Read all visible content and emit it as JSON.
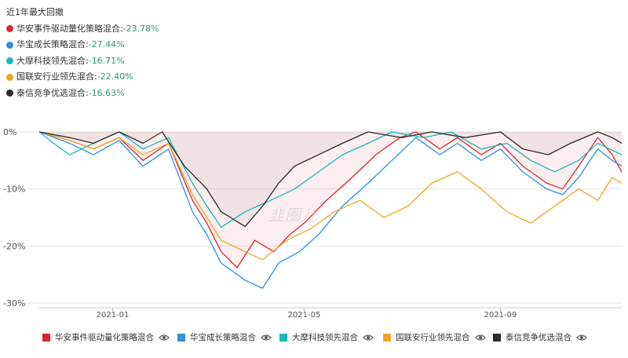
{
  "summary": {
    "title": "近1年最大回撤",
    "items": [
      {
        "name": "华安事件驱动量化策略混合",
        "value": "-23.78%",
        "color": "#e0222f"
      },
      {
        "name": "华宝成长策略混合",
        "value": "-27.44%",
        "color": "#2f8fe0"
      },
      {
        "name": "大摩科技领先混合",
        "value": "-16.71%",
        "color": "#19b8b8"
      },
      {
        "name": "国联安行业领先混合",
        "value": "-22.40%",
        "color": "#f0a623"
      },
      {
        "name": "泰信竞争优选混合",
        "value": "-16.63%",
        "color": "#2a2a2a"
      }
    ]
  },
  "watermark": "韭圈儿",
  "chart_data": {
    "type": "line",
    "title": "近1年最大回撤",
    "xlabel": "",
    "ylabel": "",
    "x_range": [
      "2020-11-16",
      "2021-11-16"
    ],
    "x_ticks": [
      {
        "date": "2021-01-01",
        "label": "2021-01"
      },
      {
        "date": "2021-05-01",
        "label": "2021-05"
      },
      {
        "date": "2021-09-01",
        "label": "2021-09"
      }
    ],
    "y_ticks": [
      {
        "value": 0,
        "label": "0%"
      },
      {
        "value": -10,
        "label": "-10%"
      },
      {
        "value": -20,
        "label": "-20%"
      },
      {
        "value": -30,
        "label": "-30%"
      }
    ],
    "ylim": [
      -30,
      0
    ],
    "grid": "horizontal",
    "legend_position": "bottom",
    "series": [
      {
        "name": "华安事件驱动量化策略混合",
        "color": "#e0222f",
        "max_drawdown": -23.78,
        "points": [
          [
            "2020-11-16",
            0
          ],
          [
            "2020-12-05",
            -1.5
          ],
          [
            "2020-12-20",
            -3
          ],
          [
            "2021-01-05",
            -1
          ],
          [
            "2021-01-20",
            -5
          ],
          [
            "2021-02-05",
            -2
          ],
          [
            "2021-02-20",
            -12
          ],
          [
            "2021-03-01",
            -16
          ],
          [
            "2021-03-10",
            -21
          ],
          [
            "2021-03-20",
            -23.8
          ],
          [
            "2021-03-31",
            -19
          ],
          [
            "2021-04-12",
            -21
          ],
          [
            "2021-04-22",
            -18
          ],
          [
            "2021-05-01",
            -16
          ],
          [
            "2021-05-15",
            -12
          ],
          [
            "2021-05-31",
            -8
          ],
          [
            "2021-06-15",
            -4
          ],
          [
            "2021-06-30",
            -1
          ],
          [
            "2021-07-10",
            0
          ],
          [
            "2021-07-25",
            -3
          ],
          [
            "2021-08-05",
            -1
          ],
          [
            "2021-08-20",
            -4
          ],
          [
            "2021-09-01",
            -2
          ],
          [
            "2021-09-15",
            -6
          ],
          [
            "2021-09-30",
            -9
          ],
          [
            "2021-10-10",
            -10
          ],
          [
            "2021-10-20",
            -6
          ],
          [
            "2021-11-01",
            -1
          ],
          [
            "2021-11-10",
            -4
          ],
          [
            "2021-11-16",
            -7
          ]
        ]
      },
      {
        "name": "华宝成长策略混合",
        "color": "#2f8fe0",
        "max_drawdown": -27.44,
        "points": [
          [
            "2020-11-16",
            0
          ],
          [
            "2020-12-05",
            -2
          ],
          [
            "2020-12-20",
            -4
          ],
          [
            "2021-01-05",
            -1.5
          ],
          [
            "2021-01-20",
            -6
          ],
          [
            "2021-02-05",
            -3
          ],
          [
            "2021-02-20",
            -14
          ],
          [
            "2021-03-01",
            -18
          ],
          [
            "2021-03-10",
            -23
          ],
          [
            "2021-03-25",
            -26
          ],
          [
            "2021-04-05",
            -27.4
          ],
          [
            "2021-04-15",
            -23
          ],
          [
            "2021-04-28",
            -21
          ],
          [
            "2021-05-10",
            -18
          ],
          [
            "2021-05-25",
            -13
          ],
          [
            "2021-06-10",
            -9
          ],
          [
            "2021-06-25",
            -5
          ],
          [
            "2021-07-10",
            -1
          ],
          [
            "2021-07-25",
            -4
          ],
          [
            "2021-08-05",
            -2
          ],
          [
            "2021-08-20",
            -5
          ],
          [
            "2021-09-01",
            -3
          ],
          [
            "2021-09-15",
            -7
          ],
          [
            "2021-09-30",
            -10
          ],
          [
            "2021-10-10",
            -11
          ],
          [
            "2021-10-20",
            -8
          ],
          [
            "2021-11-01",
            -3
          ],
          [
            "2021-11-10",
            -5
          ],
          [
            "2021-11-16",
            -6
          ]
        ]
      },
      {
        "name": "大摩科技领先混合",
        "color": "#19b8b8",
        "max_drawdown": -16.71,
        "points": [
          [
            "2020-11-16",
            0
          ],
          [
            "2020-11-25",
            -2
          ],
          [
            "2020-12-05",
            -4
          ],
          [
            "2020-12-20",
            -2
          ],
          [
            "2021-01-05",
            0
          ],
          [
            "2021-01-20",
            -3
          ],
          [
            "2021-02-05",
            -1
          ],
          [
            "2021-02-20",
            -9
          ],
          [
            "2021-03-01",
            -13
          ],
          [
            "2021-03-10",
            -16.7
          ],
          [
            "2021-03-25",
            -14
          ],
          [
            "2021-04-10",
            -12
          ],
          [
            "2021-04-25",
            -10
          ],
          [
            "2021-05-10",
            -7
          ],
          [
            "2021-05-25",
            -4
          ],
          [
            "2021-06-10",
            -2
          ],
          [
            "2021-06-25",
            0
          ],
          [
            "2021-07-15",
            -1
          ],
          [
            "2021-08-01",
            0
          ],
          [
            "2021-08-20",
            -3
          ],
          [
            "2021-09-05",
            -2
          ],
          [
            "2021-09-20",
            -5
          ],
          [
            "2021-10-05",
            -7
          ],
          [
            "2021-10-20",
            -5
          ],
          [
            "2021-11-01",
            -2
          ],
          [
            "2021-11-16",
            -4
          ]
        ]
      },
      {
        "name": "国联安行业领先混合",
        "color": "#f0a623",
        "max_drawdown": -22.4,
        "points": [
          [
            "2020-11-16",
            0
          ],
          [
            "2020-12-05",
            -1.5
          ],
          [
            "2020-12-20",
            -3
          ],
          [
            "2021-01-05",
            -1
          ],
          [
            "2021-01-20",
            -4
          ],
          [
            "2021-02-05",
            -2
          ],
          [
            "2021-02-20",
            -11
          ],
          [
            "2021-03-01",
            -15
          ],
          [
            "2021-03-10",
            -19
          ],
          [
            "2021-03-25",
            -21
          ],
          [
            "2021-04-05",
            -22.4
          ],
          [
            "2021-04-20",
            -19
          ],
          [
            "2021-05-05",
            -17
          ],
          [
            "2021-05-20",
            -14
          ],
          [
            "2021-06-05",
            -12
          ],
          [
            "2021-06-20",
            -15
          ],
          [
            "2021-07-05",
            -13
          ],
          [
            "2021-07-20",
            -9
          ],
          [
            "2021-08-05",
            -7
          ],
          [
            "2021-08-20",
            -10
          ],
          [
            "2021-09-05",
            -14
          ],
          [
            "2021-09-20",
            -16
          ],
          [
            "2021-10-05",
            -13
          ],
          [
            "2021-10-20",
            -10
          ],
          [
            "2021-11-01",
            -12
          ],
          [
            "2021-11-10",
            -8
          ],
          [
            "2021-11-16",
            -9
          ]
        ]
      },
      {
        "name": "泰信竞争优选混合",
        "color": "#2a2a2a",
        "max_drawdown": -16.63,
        "points": [
          [
            "2020-11-16",
            0
          ],
          [
            "2020-12-05",
            -1
          ],
          [
            "2020-12-20",
            -2
          ],
          [
            "2021-01-05",
            0
          ],
          [
            "2021-01-20",
            -2
          ],
          [
            "2021-02-01",
            0
          ],
          [
            "2021-02-15",
            -6
          ],
          [
            "2021-03-01",
            -10
          ],
          [
            "2021-03-10",
            -14
          ],
          [
            "2021-03-25",
            -16.6
          ],
          [
            "2021-04-05",
            -13
          ],
          [
            "2021-04-15",
            -9
          ],
          [
            "2021-04-25",
            -6
          ],
          [
            "2021-05-10",
            -4
          ],
          [
            "2021-05-25",
            -2
          ],
          [
            "2021-06-10",
            0
          ],
          [
            "2021-07-01",
            -1
          ],
          [
            "2021-07-20",
            0
          ],
          [
            "2021-08-10",
            -1
          ],
          [
            "2021-09-01",
            0
          ],
          [
            "2021-09-15",
            -3
          ],
          [
            "2021-10-01",
            -4
          ],
          [
            "2021-10-15",
            -2
          ],
          [
            "2021-11-01",
            0
          ],
          [
            "2021-11-10",
            -1
          ],
          [
            "2021-11-16",
            -2
          ]
        ]
      }
    ]
  }
}
